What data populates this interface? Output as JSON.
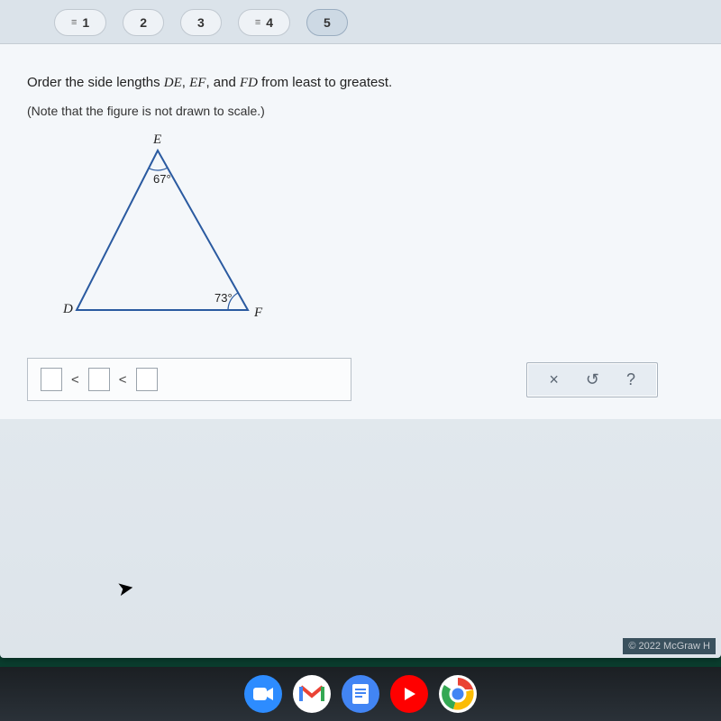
{
  "nav": {
    "tabs": [
      {
        "label": "1",
        "completed": true,
        "active": false
      },
      {
        "label": "2",
        "completed": false,
        "active": false
      },
      {
        "label": "3",
        "completed": false,
        "active": false
      },
      {
        "label": "4",
        "completed": true,
        "active": false
      },
      {
        "label": "5",
        "completed": false,
        "active": true
      }
    ]
  },
  "question": {
    "prompt_pre": "Order the side lengths ",
    "seg1": "DE",
    "sep1": ", ",
    "seg2": "EF",
    "sep2": ", and ",
    "seg3": "FD",
    "prompt_post": " from least to greatest.",
    "note": "(Note that the figure is not drawn to scale.)"
  },
  "triangle": {
    "vertices": {
      "E": "E",
      "D": "D",
      "F": "F"
    },
    "angles": {
      "E": "67°",
      "F": "73°"
    },
    "points": {
      "E": [
        145,
        18
      ],
      "D": [
        55,
        195
      ],
      "F": [
        245,
        195
      ]
    },
    "stroke": "#2a5aa0",
    "stroke_width": 2,
    "arc_radius": 22
  },
  "answer": {
    "comparator": "<"
  },
  "actions": {
    "clear": "×",
    "reset": "↺",
    "help": "?"
  },
  "footer": {
    "copyright": "© 2022 McGraw H"
  },
  "shelf_apps": [
    "zoom",
    "gmail",
    "docs",
    "yt",
    "chrome"
  ]
}
